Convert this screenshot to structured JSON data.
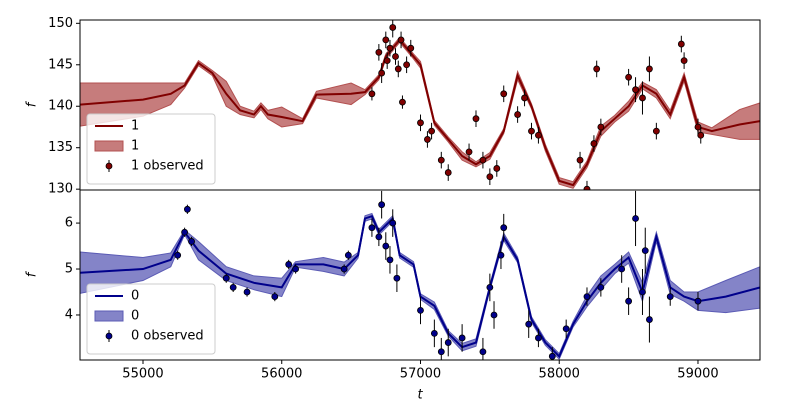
{
  "chart_data": [
    {
      "type": "line",
      "ylabel": "f",
      "legend": "lower left",
      "xlim": [
        54546,
        59447
      ],
      "ylim": [
        129.9,
        150.4
      ],
      "yticks": [
        130,
        135,
        140,
        145,
        150
      ],
      "x": [
        54546,
        55000,
        55200,
        55300,
        55400,
        55500,
        55600,
        55700,
        55800,
        55850,
        55900,
        56000,
        56150,
        56250,
        56500,
        56600,
        56700,
        56750,
        56800,
        56850,
        56950,
        57000,
        57100,
        57200,
        57300,
        57400,
        57500,
        57600,
        57700,
        57800,
        57900,
        58000,
        58100,
        58200,
        58300,
        58400,
        58500,
        58600,
        58700,
        58800,
        58900,
        59000,
        59100,
        59300,
        59447
      ],
      "series": [
        {
          "name": "1",
          "kind": "line",
          "color": "#800000",
          "values": [
            140.2,
            140.8,
            141.5,
            142.5,
            145.2,
            144,
            141.5,
            139.5,
            139.0,
            140.0,
            139.0,
            138.7,
            138.2,
            141.4,
            141.5,
            141.7,
            143.5,
            146,
            147,
            148,
            146,
            145,
            138,
            136,
            134,
            133,
            134,
            137,
            143.7,
            140,
            135,
            131,
            130.5,
            133,
            137,
            138.5,
            140,
            142.5,
            141.5,
            139,
            143.5,
            137.5,
            137.0,
            137.8,
            138.2
          ]
        },
        {
          "name": "1",
          "kind": "band",
          "color": "#b35050",
          "lower": [
            137.6,
            138.8,
            140.2,
            142.2,
            144.9,
            143.7,
            140,
            139,
            138.6,
            139.6,
            138.5,
            137.5,
            137.9,
            141,
            140.2,
            141.4,
            143.2,
            145.7,
            146.7,
            147.7,
            145.7,
            144.6,
            137.7,
            135.7,
            133.5,
            132.7,
            133.6,
            136.7,
            143.2,
            139.7,
            134.6,
            130.6,
            130.1,
            132.6,
            136.4,
            138.1,
            139.4,
            142.1,
            141,
            138.5,
            143,
            136.9,
            136.6,
            136,
            136
          ],
          "upper": [
            142.8,
            142.8,
            142.8,
            142.8,
            145.5,
            144.3,
            143,
            140,
            139.4,
            140.4,
            139.5,
            139.9,
            138.5,
            141.8,
            142.8,
            142,
            143.8,
            146.3,
            147.3,
            148.3,
            146.3,
            145.4,
            138.3,
            136.3,
            134.5,
            133.3,
            134.4,
            137.3,
            144.2,
            140.3,
            135.4,
            131.4,
            130.9,
            133.4,
            137.6,
            138.9,
            140.6,
            142.9,
            142,
            139.5,
            144,
            138.1,
            137.4,
            139.6,
            140.4
          ]
        },
        {
          "name": "1 observed",
          "kind": "errorbar",
          "color": "#800000",
          "x": [
            56700,
            56720,
            56750,
            56760,
            56780,
            56800,
            56820,
            56840,
            56860,
            56900,
            56930,
            56650,
            56870,
            57000,
            57050,
            57080,
            57150,
            57200,
            57350,
            57400,
            57450,
            57500,
            57550,
            57600,
            57700,
            57750,
            57800,
            57850,
            58150,
            58200,
            58250,
            58270,
            58300,
            58500,
            58550,
            58600,
            58650,
            58700,
            58880,
            58900,
            59000,
            59020
          ],
          "values": [
            146.5,
            144,
            148,
            145.5,
            147,
            149.5,
            146,
            144.5,
            148,
            145,
            147,
            141.5,
            140.5,
            138,
            136,
            137,
            133.5,
            132,
            134.5,
            138.5,
            133.5,
            131.5,
            132.5,
            141.5,
            139,
            141,
            137,
            136.5,
            133.5,
            130,
            135.5,
            144.5,
            137.5,
            143.5,
            142,
            141,
            144.5,
            137,
            147.5,
            145.5,
            137.5,
            136.5
          ],
          "errors": [
            1,
            1.2,
            1,
            1,
            1,
            1.2,
            1,
            1,
            1,
            1,
            1,
            0.8,
            0.8,
            1,
            1,
            1,
            1,
            1,
            1,
            1,
            1,
            1,
            1,
            1,
            1,
            1,
            1,
            1,
            1,
            1,
            1,
            1,
            1,
            1,
            1.5,
            2,
            1.5,
            1,
            1,
            1,
            1,
            1
          ]
        }
      ]
    },
    {
      "type": "line",
      "ylabel": "f",
      "xlabel": "t",
      "legend": "lower left",
      "xlim": [
        54546,
        59447
      ],
      "ylim": [
        3.02,
        6.72
      ],
      "xticks": [
        55000,
        56000,
        57000,
        58000,
        59000
      ],
      "yticks": [
        4,
        5,
        6
      ],
      "x": [
        54546,
        55000,
        55200,
        55300,
        55400,
        55600,
        55800,
        56000,
        56100,
        56300,
        56450,
        56550,
        56600,
        56650,
        56700,
        56800,
        56850,
        56950,
        57000,
        57100,
        57200,
        57300,
        57400,
        57500,
        57600,
        57700,
        57800,
        57900,
        58000,
        58100,
        58200,
        58300,
        58400,
        58500,
        58600,
        58700,
        58800,
        58900,
        59000,
        59200,
        59447
      ],
      "series": [
        {
          "name": "0",
          "kind": "line",
          "color": "#00008b",
          "values": [
            4.92,
            5.0,
            5.2,
            5.8,
            5.4,
            4.9,
            4.7,
            4.6,
            5.1,
            5.1,
            5.0,
            5.3,
            6.1,
            6.15,
            5.8,
            6.1,
            5.3,
            5.1,
            4.4,
            4.2,
            3.6,
            3.3,
            3.4,
            4.6,
            5.7,
            5.2,
            3.9,
            3.4,
            3.1,
            3.8,
            4.3,
            4.7,
            5.0,
            5.25,
            4.5,
            5.7,
            4.6,
            4.4,
            4.3,
            4.4,
            4.6
          ]
        },
        {
          "name": "0",
          "kind": "band",
          "color": "#5b5bb5",
          "lower": [
            4.47,
            4.75,
            5.05,
            5.75,
            5.2,
            4.75,
            4.55,
            4.4,
            5.04,
            4.95,
            4.85,
            5.24,
            6.04,
            6.09,
            5.74,
            6.04,
            5.24,
            5.04,
            4.34,
            4.12,
            3.54,
            3.22,
            3.32,
            4.54,
            5.62,
            5.14,
            3.84,
            3.34,
            3.04,
            3.74,
            4.18,
            4.55,
            4.9,
            5.13,
            4.3,
            5.6,
            4.45,
            4.3,
            4.1,
            4.05,
            4.15
          ],
          "upper": [
            5.37,
            5.25,
            5.35,
            5.85,
            5.6,
            5.05,
            4.85,
            4.8,
            5.16,
            5.25,
            5.15,
            5.36,
            6.16,
            6.21,
            5.86,
            6.16,
            5.36,
            5.16,
            4.46,
            4.28,
            3.66,
            3.38,
            3.48,
            4.66,
            5.78,
            5.26,
            3.96,
            3.46,
            3.16,
            3.86,
            4.42,
            4.85,
            5.1,
            5.37,
            4.7,
            5.8,
            4.75,
            4.5,
            4.5,
            4.75,
            5.05
          ]
        },
        {
          "name": "0 observed",
          "kind": "errorbar",
          "color": "#00008b",
          "x": [
            55300,
            55320,
            55350,
            55250,
            55600,
            55650,
            55750,
            55950,
            56050,
            56100,
            56450,
            56480,
            56650,
            56700,
            56720,
            56750,
            56780,
            56800,
            56830,
            57000,
            57100,
            57150,
            57200,
            57300,
            57450,
            57500,
            57530,
            57580,
            57600,
            57780,
            57850,
            57950,
            58050,
            58200,
            58300,
            58450,
            58500,
            58550,
            58600,
            58620,
            58650,
            58800,
            59000
          ],
          "values": [
            5.8,
            6.3,
            5.6,
            5.3,
            4.8,
            4.6,
            4.5,
            4.4,
            5.1,
            5.0,
            5.0,
            5.3,
            5.9,
            5.7,
            6.4,
            5.5,
            5.2,
            6.0,
            4.8,
            4.1,
            3.6,
            3.2,
            3.4,
            3.5,
            3.2,
            4.6,
            4.0,
            5.3,
            5.9,
            3.8,
            3.5,
            3.1,
            3.7,
            4.4,
            4.6,
            5.0,
            4.3,
            6.1,
            4.5,
            5.4,
            3.9,
            4.4,
            4.3
          ],
          "errors": [
            0.1,
            0.1,
            0.1,
            0.1,
            0.1,
            0.1,
            0.1,
            0.1,
            0.1,
            0.1,
            0.1,
            0.1,
            0.2,
            0.2,
            0.3,
            0.3,
            0.3,
            0.3,
            0.3,
            0.3,
            0.3,
            0.3,
            0.3,
            0.3,
            0.3,
            0.3,
            0.3,
            0.3,
            0.3,
            0.3,
            0.2,
            0.2,
            0.2,
            0.2,
            0.2,
            0.3,
            0.3,
            0.6,
            0.5,
            0.5,
            0.5,
            0.2,
            0.2
          ]
        }
      ]
    }
  ]
}
